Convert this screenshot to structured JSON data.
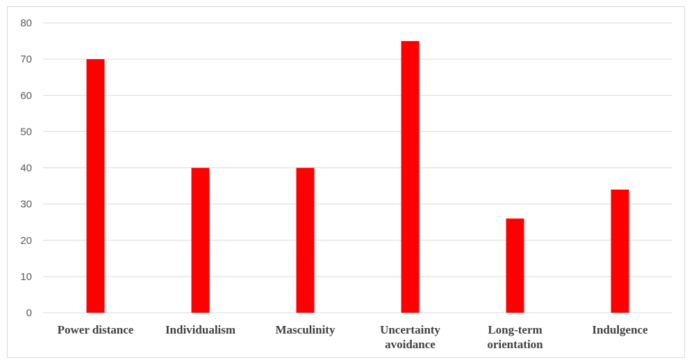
{
  "chart_data": {
    "type": "bar",
    "categories": [
      [
        "Power distance"
      ],
      [
        "Individualism"
      ],
      [
        "Masculinity"
      ],
      [
        "Uncertainty",
        "avoidance"
      ],
      [
        "Long-term",
        "orientation"
      ],
      [
        "Indulgence"
      ]
    ],
    "values": [
      70,
      40,
      40,
      75,
      26,
      34
    ],
    "title": "",
    "xlabel": "",
    "ylabel": "",
    "ylim": [
      0,
      80
    ],
    "yticks": [
      0,
      10,
      20,
      30,
      40,
      50,
      60,
      70,
      80
    ],
    "grid": true,
    "legend": "none",
    "bar_color": "#ff0000",
    "grid_color": "#d9d9d9"
  }
}
